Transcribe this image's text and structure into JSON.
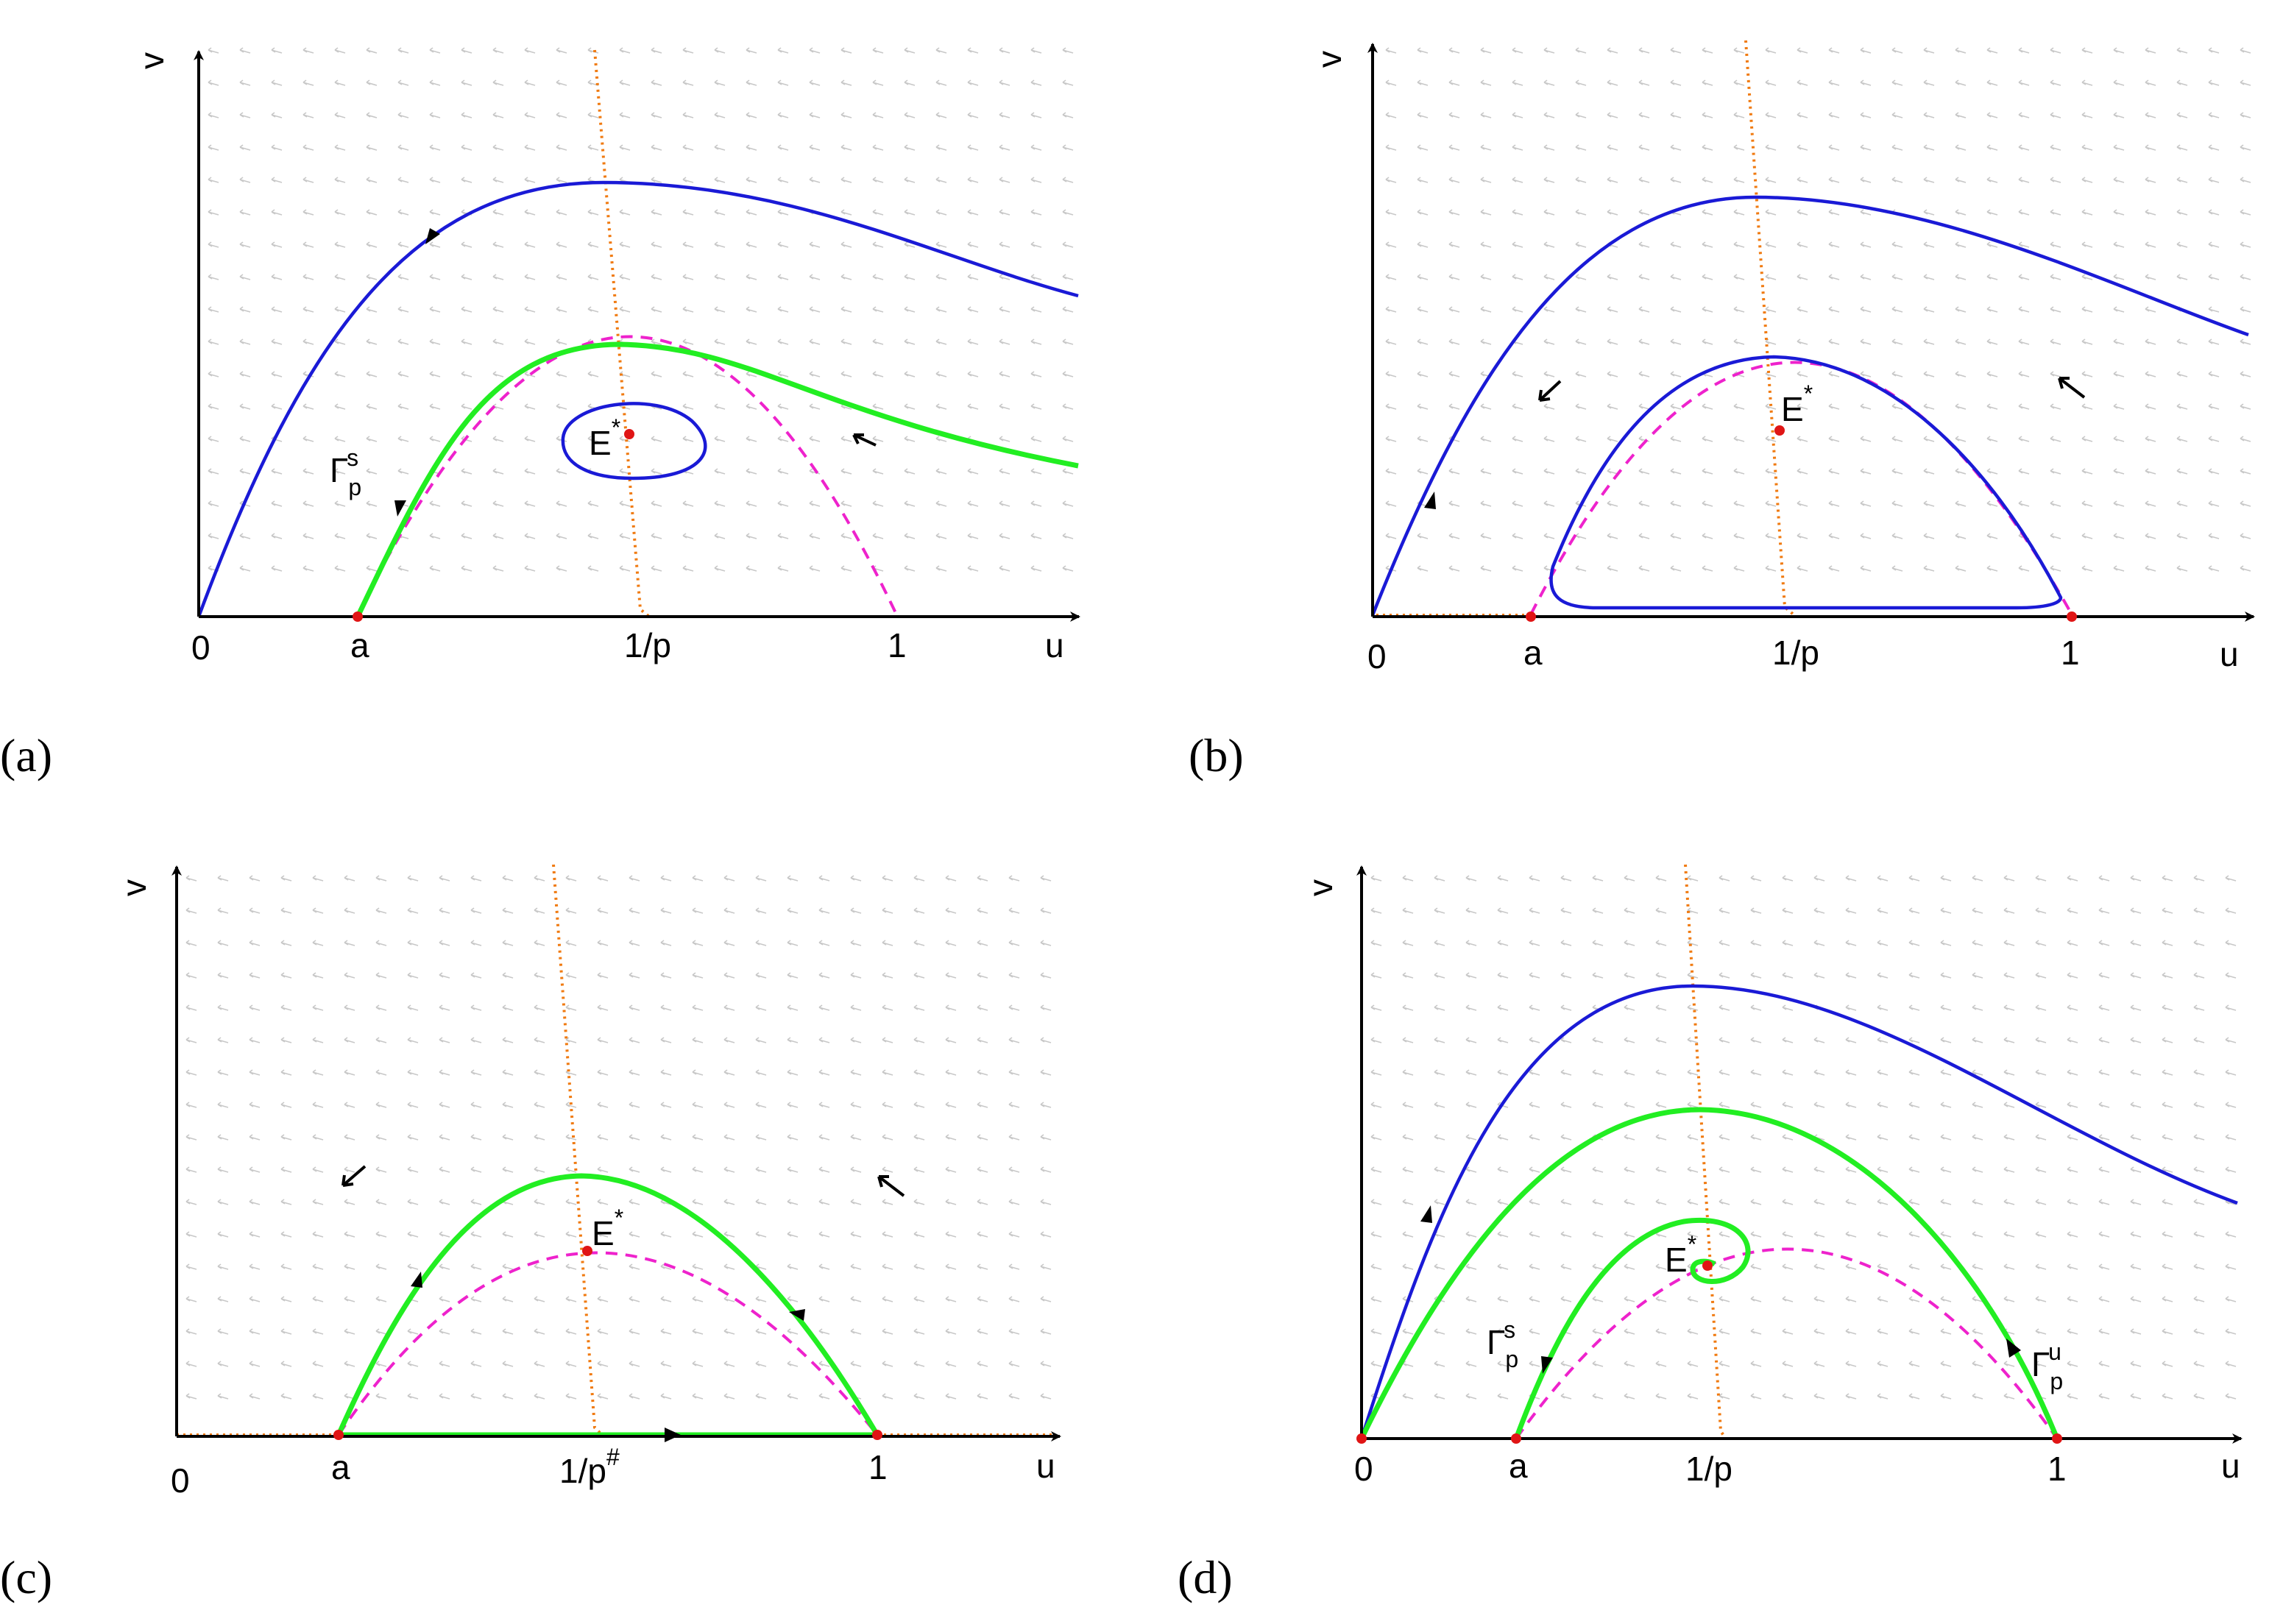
{
  "panels": {
    "a": {
      "panel_label": "(a)",
      "y_axis_label": "v",
      "x_axis_label": "u",
      "tick_labels": {
        "origin": "0",
        "a": "a",
        "inv_p": "1/p",
        "one": "1"
      },
      "point_label": "E",
      "point_label_sup": "*",
      "gamma_s": {
        "main": "Γ",
        "sub": "p",
        "sup": "s"
      }
    },
    "b": {
      "panel_label": "(b)",
      "y_axis_label": "v",
      "x_axis_label": "u",
      "tick_labels": {
        "origin": "0",
        "a": "a",
        "inv_p": "1/p",
        "one": "1"
      },
      "point_label": "E",
      "point_label_sup": "*"
    },
    "c": {
      "panel_label": "(c)",
      "y_axis_label": "v",
      "x_axis_label": "u",
      "tick_labels": {
        "origin": "0",
        "a": "a",
        "inv_p": "1/p",
        "inv_p_sup": "#",
        "one": "1"
      },
      "point_label": "E",
      "point_label_sup": "*"
    },
    "d": {
      "panel_label": "(d)",
      "y_axis_label": "v",
      "x_axis_label": "u",
      "tick_labels": {
        "origin": "0",
        "a": "a",
        "inv_p": "1/p",
        "one": "1"
      },
      "point_label": "E",
      "point_label_sup": "*",
      "gamma_s": {
        "main": "Γ",
        "sub": "p",
        "sup": "s"
      },
      "gamma_u": {
        "main": "Γ",
        "sub": "p",
        "sup": "u"
      }
    }
  },
  "colors": {
    "trajectory": "#1a1ad6",
    "separatrix": "#22ee22",
    "nullcline_u": "#ee22cc",
    "nullcline_v": "#f07a10",
    "equilibrium": "#e01515",
    "vector_field": "#c8c8c8"
  }
}
